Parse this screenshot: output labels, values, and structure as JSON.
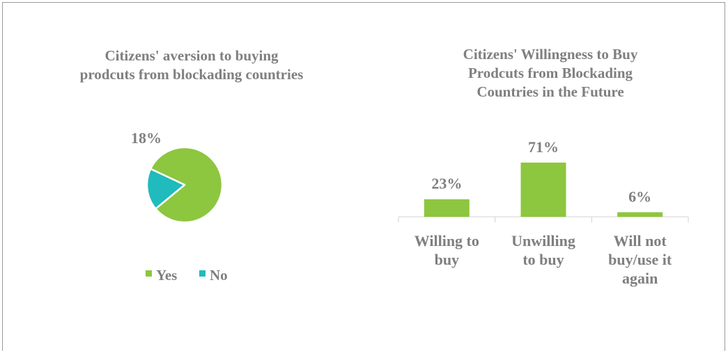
{
  "chart_data": [
    {
      "type": "pie",
      "title": "Citizens' aversion to buying prodcuts from blockading countries",
      "slices": [
        {
          "label": "Yes",
          "value": 82,
          "color": "#8dc63f"
        },
        {
          "label": "No",
          "value": 18,
          "color": "#20bbbd",
          "data_label": "18%"
        }
      ],
      "legend": "bottom"
    },
    {
      "type": "bar",
      "title": "Citizens' Willingness to Buy Prodcuts from Blockading Countries in the Future",
      "categories": [
        "Willing to buy",
        "Unwilling to buy",
        "Will not buy/use it again"
      ],
      "category_lines": [
        [
          "Willing to",
          "buy"
        ],
        [
          "Unwilling",
          "to buy"
        ],
        [
          "Will not",
          "buy/use it",
          "again"
        ]
      ],
      "values": [
        23,
        71,
        6
      ],
      "data_labels": [
        "23%",
        "71%",
        "6%"
      ],
      "color": "#8dc63f"
    }
  ]
}
